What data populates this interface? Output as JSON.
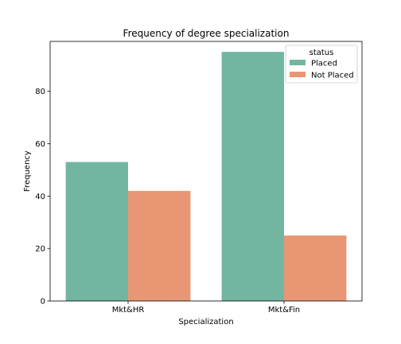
{
  "chart_data": {
    "type": "bar",
    "title": "Frequency of degree specialization",
    "xlabel": "Specialization",
    "ylabel": "Frequency",
    "categories": [
      "Mkt&HR",
      "Mkt&Fin"
    ],
    "series": [
      {
        "name": "Placed",
        "values": [
          53,
          95
        ],
        "color": "#72b6a1"
      },
      {
        "name": "Not Placed",
        "values": [
          42,
          25
        ],
        "color": "#e99675"
      }
    ],
    "ylim": [
      0,
      99
    ],
    "yticks": [
      0,
      20,
      40,
      60,
      80
    ],
    "grid": false,
    "legend": {
      "title": "status",
      "placement": "top-right"
    }
  }
}
